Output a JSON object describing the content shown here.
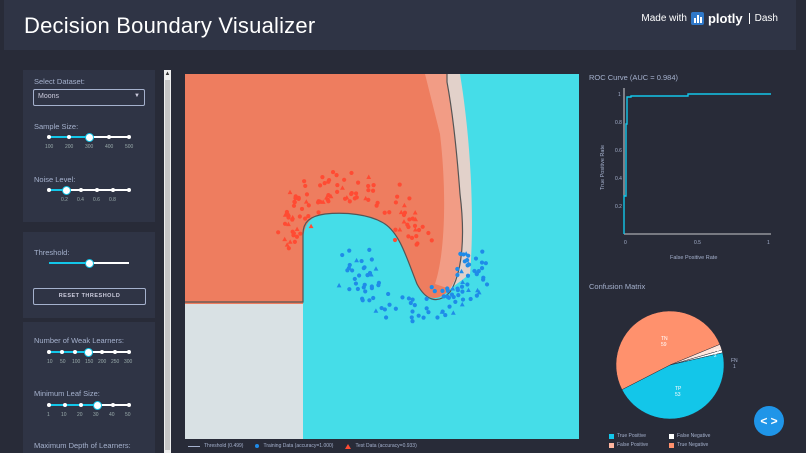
{
  "header": {
    "title": "Decision Boundary Visualizer",
    "made_with": "Made with",
    "plotly": "plotly",
    "dash": "Dash"
  },
  "sidebar": {
    "dataset_label": "Select Dataset:",
    "dataset_value": "Moons",
    "sample_size_label": "Sample Size:",
    "sample_size_ticks": [
      "100",
      "200",
      "300",
      "400",
      "500"
    ],
    "sample_size_value": 300,
    "noise_label": "Noise Level:",
    "noise_ticks": [
      "0.2",
      "0.4",
      "0.6",
      "0.8"
    ],
    "noise_value": 0.3,
    "threshold_label": "Threshold:",
    "threshold_value": 0.499,
    "reset_label": "RESET THRESHOLD",
    "weak_learners_label": "Number of Weak Learners:",
    "weak_learners_ticks": [
      "10",
      "50",
      "100",
      "150",
      "200",
      "250",
      "300"
    ],
    "weak_learners_value": 150,
    "min_leaf_label": "Minimum Leaf Size:",
    "min_leaf_ticks": [
      "1",
      "10",
      "20",
      "30",
      "40",
      "50"
    ],
    "min_leaf_value": 30,
    "max_depth_label": "Maximum Depth of Learners:"
  },
  "main_plot": {
    "legend": {
      "threshold": "Threshold (0.499)",
      "training": "Training Data (accuracy=1.000)",
      "test": "Test Data (accuracy=0.933)"
    }
  },
  "roc": {
    "title": "ROC Curve (AUC = 0.984)",
    "xlabel": "False Positive Rate",
    "ylabel": "True Positive Rate",
    "xticks": [
      "0",
      "0.5",
      "1"
    ],
    "yticks": [
      "1",
      "0.8",
      "0.6",
      "0.4",
      "0.2",
      "0"
    ]
  },
  "confusion": {
    "title": "Confusion Matrix",
    "slices": [
      {
        "label": "TN",
        "value": 59,
        "color": "#ff916d"
      },
      {
        "label": "FP",
        "value": 2,
        "color": "#ffe6dd"
      },
      {
        "label": "FN",
        "value": 1,
        "color": "#ffffff"
      },
      {
        "label": "TP",
        "value": 53,
        "color": "#13c6e9"
      }
    ],
    "tn_text": "TN",
    "tn_val": "59",
    "fp_text": "FP",
    "fp_val": "2",
    "fn_text": "FN",
    "fn_val": "1",
    "tp_text": "TP",
    "tp_val": "53",
    "legend": [
      "True Positive",
      "False Negative",
      "False Positive",
      "True Negative"
    ]
  },
  "colors": {
    "accent": "#13c6e9",
    "red": "#ff4b33",
    "blue": "#1f8be8"
  },
  "nav": {
    "label": "< >"
  }
}
